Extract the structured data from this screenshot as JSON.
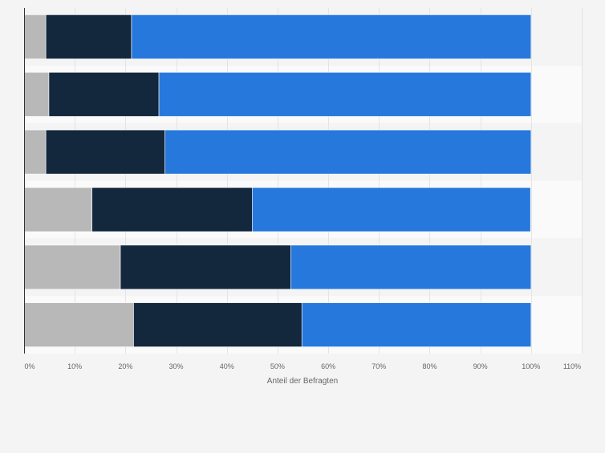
{
  "chart_data": {
    "type": "bar",
    "orientation": "horizontal",
    "stacked": true,
    "categories": [
      "",
      "",
      "",
      "",
      "",
      ""
    ],
    "series": [
      {
        "values": [
          4.3,
          4.9,
          4.3,
          13.4,
          19.0,
          21.6
        ],
        "color": "#b8b8b8"
      },
      {
        "values": [
          16.9,
          21.7,
          23.5,
          31.6,
          33.6,
          33.2
        ],
        "color": "#13273d"
      },
      {
        "values": [
          78.8,
          73.4,
          72.2,
          54.9,
          47.4,
          45.2
        ],
        "color": "#2778dd"
      }
    ],
    "xlabel": "Anteil der Befragten",
    "xlim": [
      0,
      110
    ],
    "xticks": [
      "0%",
      "10%",
      "20%",
      "30%",
      "40%",
      "50%",
      "60%",
      "70%",
      "80%",
      "90%",
      "100%",
      "110%"
    ],
    "grid": true,
    "legend": "none"
  }
}
